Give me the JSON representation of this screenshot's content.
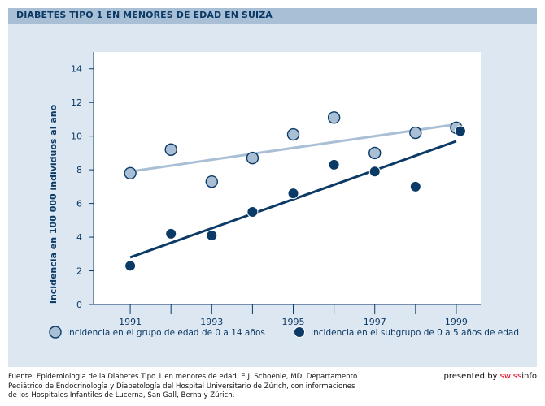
{
  "header": {
    "title": "DIABETES TIPO 1 EN MENORES DE EDAD EN SUIZA"
  },
  "colors": {
    "header_bg": "#a9bfd6",
    "panel_bg": "#dde7f1",
    "plot_bg": "#ffffff",
    "series_light": "#a9bfd6",
    "series_dark": "#0b3a66"
  },
  "chart_data": {
    "type": "scatter",
    "title": "",
    "xlabel": "",
    "ylabel": "Incidencia en 100 000 individuos al año",
    "xlim": [
      1990.1,
      1999.6
    ],
    "ylim": [
      0,
      15
    ],
    "x_ticks": [
      1991,
      1992,
      1993,
      1994,
      1995,
      1996,
      1997,
      1998,
      1999
    ],
    "x_tick_labels": [
      "1991",
      "",
      "1993",
      "",
      "1995",
      "",
      "1997",
      "",
      "1999"
    ],
    "y_ticks": [
      0,
      2,
      4,
      6,
      8,
      10,
      12,
      14
    ],
    "y_tick_labels": [
      "0",
      "2",
      "4",
      "6",
      "8",
      "10",
      "12",
      "14"
    ],
    "grid": false,
    "legend_position": "bottom",
    "series": [
      {
        "name": "Incidencia en el grupo de edad de 0 a 14 años",
        "style": "light",
        "x": [
          1991,
          1992,
          1993,
          1994,
          1995,
          1996,
          1997,
          1998,
          1999
        ],
        "y": [
          7.8,
          9.2,
          7.3,
          8.7,
          10.1,
          11.1,
          9.0,
          10.2,
          10.5
        ],
        "trend": {
          "x": [
            1991,
            1999
          ],
          "y": [
            7.9,
            10.7
          ]
        }
      },
      {
        "name": "Incidencia en el subgrupo de 0 a 5 años de edad",
        "style": "dark",
        "x": [
          1991,
          1992,
          1993,
          1994,
          1995,
          1996,
          1997,
          1998,
          1999.1
        ],
        "y": [
          2.3,
          4.2,
          4.1,
          5.5,
          6.6,
          8.3,
          7.9,
          7.0,
          10.3
        ],
        "trend": {
          "x": [
            1991,
            1999
          ],
          "y": [
            2.8,
            9.7
          ]
        }
      }
    ]
  },
  "source": {
    "lines": [
      "Fuente: Epidemiologia de la Diabetes Tipo 1 en menores de edad.  E.J. Schoenle, MD, Departamento",
      "Pediátrico de Endocrinología y Diabetología del Hospital Universitario de Zúrich, con informaciones",
      "de los Hospitales Infantiles de Lucerna, San Gall, Berna y Zúrich."
    ]
  },
  "credit": {
    "prefix": "presented by ",
    "brand_a": "swiss",
    "brand_b": "info"
  }
}
